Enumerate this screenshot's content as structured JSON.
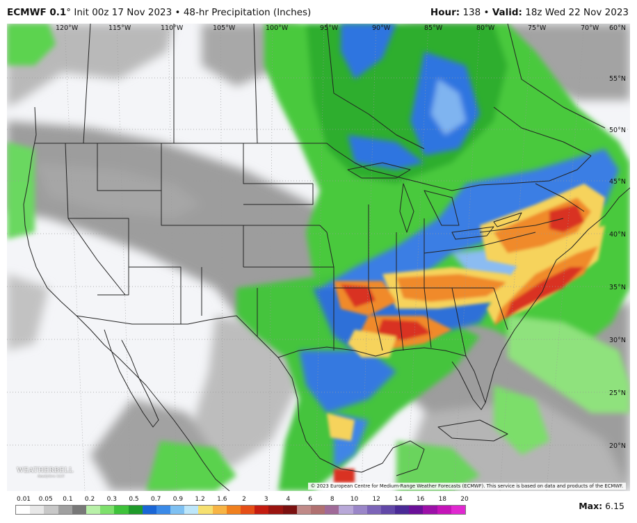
{
  "header": {
    "model": "ECMWF 0.1",
    "degree": "°",
    "init": "Init 00z 17 Nov 2023",
    "bullet": "•",
    "product": "48-hr Precipitation (Inches)",
    "hour_label": "Hour:",
    "hour_value": "138",
    "valid_label": "Valid:",
    "valid_value": "18z Wed 22 Nov 2023"
  },
  "map": {
    "longitude_labels": [
      "120°W",
      "115°W",
      "110°W",
      "105°W",
      "100°W",
      "95°W",
      "90°W",
      "85°W",
      "80°W",
      "75°W",
      "70°W",
      "60°N"
    ],
    "latitude_labels": [
      "55°N",
      "50°N",
      "45°N",
      "40°N",
      "35°N",
      "30°N",
      "25°N",
      "20°N"
    ],
    "copyright": "© 2023 European Centre for Medium-Range Weather Forecasts (ECMWF). This service is based on data and products of the ECMWF.",
    "logo_text": "WEATHERBELL",
    "logo_sub": "Analytics LLC",
    "colors": {
      "ocean": "#f4f5f8",
      "gray_light": "#c3c3c3",
      "gray_dark": "#8a8a8a",
      "green_light": "#9be88a",
      "green": "#41c53a",
      "green_dark": "#1f9e2a",
      "blue": "#2f74e0",
      "blue_light": "#7fb4f0",
      "yellow": "#f6d35c",
      "orange": "#f08a2a",
      "red": "#d93020",
      "border": "#222222"
    }
  },
  "legend": {
    "ticks": [
      "0.01",
      "0.05",
      "0.1",
      "0.2",
      "0.3",
      "0.5",
      "0.7",
      "0.9",
      "1.2",
      "1.6",
      "2",
      "3",
      "4",
      "6",
      "8",
      "10",
      "12",
      "14",
      "16",
      "18",
      "20"
    ],
    "colors": [
      "#ffffff",
      "#e8e8e8",
      "#c8c8c8",
      "#a0a0a0",
      "#787878",
      "#b8f0a8",
      "#7ee06c",
      "#3ec23a",
      "#1f9a2a",
      "#1a66d6",
      "#3a8ae8",
      "#7ec0f2",
      "#bde6fa",
      "#f6e070",
      "#f7b444",
      "#f0801e",
      "#e54e16",
      "#c41c10",
      "#9a1410",
      "#7a1010",
      "#c08a88",
      "#b07070",
      "#a06a98",
      "#b8a8d8",
      "#9a86c8",
      "#7c64b8",
      "#6248a8",
      "#4a2a96",
      "#6a1098",
      "#9c10a8",
      "#c414b8",
      "#e028d0"
    ],
    "max_label": "Max:",
    "max_value": "6.15"
  }
}
